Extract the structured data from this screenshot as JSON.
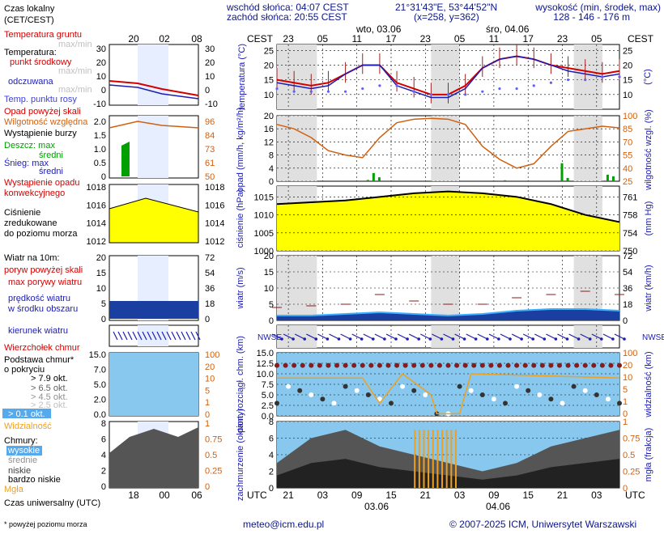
{
  "header": {
    "sunrise": "wschód słońca: 04:07 CEST",
    "sunset": "zachód słońca: 20:55 CEST",
    "coords": "21°31'43\"E, 53°44'52\"N",
    "grid": "(x=258, y=362)",
    "elevation_label": "wysokość (min, środek, max)",
    "elevation_values": "128 - 146 - 176 m"
  },
  "footer": {
    "email": "meteo@icm.edu.pl",
    "copyright": "© 2007-2025 ICM, Uniwersytet Warszawski",
    "note": "* powyżej poziomu morza",
    "utc_label": "Czas uniwersalny (UTC)"
  },
  "colors": {
    "red": "#d40000",
    "blue": "#1c1cb4",
    "orange": "#d06010",
    "darkred": "#8b1a1a",
    "green": "#00a000",
    "yellow": "#ffff00",
    "sky": "#88c8ee",
    "night": "#e0e0e0"
  },
  "legend": {
    "time_local": "Czas lokalny",
    "time_local2": "(CET/CEST)",
    "soil_temp": "Temperatura gruntu",
    "soil_sub": "max/min",
    "temperature": "Temperatura:",
    "mid_point": "punkt środkowy",
    "mid_sub": "max/min",
    "felt": "odczuwana",
    "felt_sub": "max/min",
    "dew": "Temp. punktu rosy",
    "precip_above": "Opad powyżej skali",
    "humidity": "Wilgotność względna",
    "storm": "Wystąpienie burzy",
    "rain_max": "Deszcz: max",
    "rain_mid": "średni",
    "snow_max": "Śnieg: max",
    "snow_mid": "średni",
    "conv1": "Wystąpienie opadu",
    "conv2": "konwekcyjnego",
    "pressure1": "Ciśnienie",
    "pressure2": "zredukowane",
    "pressure3": "do poziomu morza",
    "wind": "Wiatr na 10m:",
    "gust_above": "poryw powyżej skali",
    "gust_max": "max porywy wiatru",
    "wind_speed": "prędkość wiatru",
    "wind_area": "w środku obszaru",
    "wind_dir": "kierunek wiatru",
    "cloud_top": "Wierzchołek chmur",
    "cloud_base1": "Podstawa chmur*",
    "cloud_base2": "o pokryciu",
    "okt79": "> 7.9 okt.",
    "okt65": "> 6.5 okt.",
    "okt45": "> 4.5 okt.",
    "okt25": "> 2.5 okt.",
    "okt01": "> 0.1 okt.",
    "visibility": "Widzialność",
    "clouds": "Chmury:",
    "cl_high": "wysokie",
    "cl_mid": "średnie",
    "cl_low": "niskie",
    "cl_vlow": "bardzo niskie",
    "fog": "Mgła"
  },
  "axes": {
    "cest": "CEST",
    "utc": "UTC",
    "local_hours": [
      "23",
      "05",
      "11",
      "17",
      "23",
      "05",
      "11",
      "17",
      "23",
      "05"
    ],
    "utc_hours": [
      "21",
      "03",
      "09",
      "15",
      "21",
      "03",
      "09",
      "15",
      "21",
      "03"
    ],
    "day1": "wto, 03.06",
    "day2": "śro, 04.06",
    "date1": "03.06",
    "date2": "04.06",
    "left_local": [
      "20",
      "02",
      "08"
    ],
    "left_utc": [
      "18",
      "00",
      "06"
    ],
    "temp_label": "temperatura (°C)",
    "precip_label": "opad (mm/h, kg/m²/h)",
    "hum_label": "wilgotność wzgl. (%)",
    "press_label": "ciśnienie (hPa)",
    "press_mm": "(mm Hg)",
    "wind_label": "wiatr (m/s)",
    "wind_kmh": "wiatr (km/h)",
    "cloud_label": "pion. rozciągł. chm. (km)",
    "vis_label": "widzialność (km)",
    "cover_label": "zachmurzenie (oktanty)",
    "fog_label": "mgła (frakcja)",
    "compass": "NWSE",
    "temp_ticks": [
      "25",
      "20",
      "15",
      "10"
    ],
    "precip_ticks": [
      "20",
      "16",
      "12",
      "8",
      "4",
      "0"
    ],
    "hum_ticks": [
      "100",
      "85",
      "70",
      "55",
      "40",
      "25"
    ],
    "press_ticks": [
      "1015",
      "1010",
      "1005",
      "1000"
    ],
    "press_mm_ticks": [
      "761",
      "758",
      "754",
      "750"
    ],
    "wind_ticks": [
      "20",
      "15",
      "10",
      "5",
      "0"
    ],
    "wind_kmh_ticks": [
      "72",
      "54",
      "36",
      "18",
      "0"
    ],
    "cloud_ticks": [
      "15.0",
      "12.5",
      "10.0",
      "7.5",
      "5.0",
      "2.5",
      "0.0"
    ],
    "vis_ticks": [
      "100",
      "20",
      "10",
      "5",
      "1",
      "0"
    ],
    "cover_ticks": [
      "8",
      "6",
      "4",
      "2",
      "0"
    ],
    "fog_ticks": [
      "1",
      "0.75",
      "0.5",
      "0.25",
      "0"
    ],
    "l_temp": [
      "30",
      "20",
      "10",
      "0",
      "-10"
    ],
    "l_temp_r": [
      "30",
      "20",
      "10",
      "0",
      "-10"
    ],
    "l_precip": [
      "2.0",
      "1.5",
      "1.0",
      "0.5",
      "0"
    ],
    "l_hum": [
      "96",
      "84",
      "73",
      "61",
      "50"
    ],
    "l_press": [
      "1018",
      "1016",
      "1014",
      "1012"
    ],
    "l_wind": [
      "20",
      "15",
      "10",
      "5",
      "0"
    ],
    "l_wind_r": [
      "72",
      "54",
      "36",
      "18",
      "0"
    ],
    "l_cloud": [
      "15.0",
      "7.0",
      "5.0",
      "2.0",
      "0.0"
    ],
    "l_cloud_r": [
      "100",
      "20",
      "10",
      "5",
      "1",
      "0"
    ],
    "l_cover": [
      "8",
      "6",
      "4",
      "2",
      "0"
    ],
    "l_cover_r": [
      "1",
      "0.75",
      "0.5",
      "0.25",
      "0"
    ]
  },
  "chart_data": [
    {
      "type": "line",
      "name": "temperature",
      "x_hours": [
        0,
        3,
        6,
        9,
        12,
        15,
        18,
        21,
        24,
        27,
        30,
        33,
        36,
        39,
        42,
        45,
        48,
        51,
        54,
        57,
        60
      ],
      "series": [
        {
          "name": "punkt środkowy",
          "values": [
            15,
            14,
            13,
            14,
            17,
            20,
            20,
            14,
            12,
            10,
            10,
            13,
            19,
            22,
            23,
            22,
            20,
            19,
            18,
            17,
            18
          ]
        },
        {
          "name": "odczuwana",
          "values": [
            14,
            13,
            12,
            13,
            17,
            20,
            20,
            13,
            11,
            9,
            9,
            12,
            19,
            22,
            23,
            22,
            20,
            18,
            17,
            16,
            17
          ]
        },
        {
          "name": "Temp. punktu rosy",
          "values": [
            12,
            11,
            11,
            11,
            11,
            12,
            13,
            13,
            11,
            10,
            10,
            10,
            11,
            12,
            12,
            13,
            14,
            15,
            15,
            16,
            16
          ]
        }
      ],
      "ylim": [
        5,
        27
      ]
    },
    {
      "type": "line",
      "name": "humidity",
      "x_hours": [
        0,
        3,
        6,
        9,
        12,
        15,
        18,
        21,
        24,
        27,
        30,
        33,
        36,
        39,
        42,
        45,
        48,
        51,
        54,
        57,
        60
      ],
      "values": [
        90,
        85,
        75,
        60,
        55,
        52,
        75,
        92,
        96,
        97,
        96,
        90,
        65,
        50,
        40,
        45,
        65,
        82,
        85,
        88,
        86
      ],
      "ylim": [
        25,
        100
      ]
    },
    {
      "type": "bar",
      "name": "precipitation",
      "x_hours": [
        16,
        17,
        18,
        40,
        50,
        51,
        58,
        59
      ],
      "values": [
        0.4,
        2.5,
        1.2,
        0.3,
        5.5,
        1.0,
        2.0,
        1.5
      ],
      "ylim": [
        0,
        20
      ]
    },
    {
      "type": "line",
      "name": "pressure",
      "x_hours": [
        0,
        6,
        12,
        18,
        24,
        30,
        36,
        42,
        48,
        54,
        60
      ],
      "values": [
        1013,
        1013.5,
        1014,
        1015,
        1016,
        1016.5,
        1016,
        1015,
        1013,
        1010,
        1008
      ],
      "ylim": [
        1000,
        1018
      ]
    },
    {
      "type": "line",
      "name": "wind",
      "x_hours": [
        0,
        6,
        12,
        18,
        24,
        30,
        36,
        42,
        48,
        54,
        60
      ],
      "series": [
        {
          "name": "prędkość wiatru",
          "values": [
            1.5,
            1.5,
            2,
            2.5,
            2,
            1.5,
            2,
            3,
            3.5,
            3.5,
            3
          ]
        },
        {
          "name": "max porywy wiatru",
          "values": [
            4,
            4.5,
            5,
            8,
            6,
            5,
            5,
            7,
            8,
            9,
            8
          ]
        }
      ],
      "ylim": [
        0,
        20
      ]
    },
    {
      "type": "area",
      "name": "cloud cover",
      "x_hours": [
        0,
        6,
        12,
        18,
        24,
        30,
        36,
        42,
        48,
        54,
        60
      ],
      "values": [
        3,
        6,
        7,
        5,
        4,
        3,
        2,
        3,
        5,
        6,
        7
      ],
      "ylim": [
        0,
        8
      ]
    }
  ]
}
